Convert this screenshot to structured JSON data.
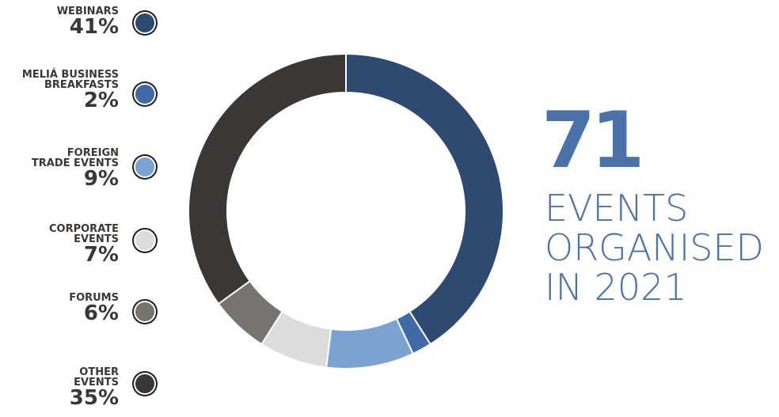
{
  "chart_data": {
    "type": "pie",
    "style": "donut",
    "categories": [
      "WEBINARS",
      "MELIÁ BUSINESS BREAKFASTS",
      "FOREIGN TRADE EVENTS",
      "CORPORATE EVENTS",
      "FORUMS",
      "OTHER EVENTS"
    ],
    "values": [
      41,
      2,
      9,
      7,
      6,
      35
    ],
    "unit": "%",
    "colors": [
      "#2f4a70",
      "#3f6aa6",
      "#7aa3d2",
      "#dcdcdc",
      "#77736f",
      "#3b3734"
    ],
    "legend_position": "left"
  },
  "legend": [
    {
      "label": "WEBINARS",
      "pct": "41%",
      "color": "#2f4a70"
    },
    {
      "label": "MELIÁ BUSINESS\nBREAKFASTS",
      "pct": "2%",
      "color": "#3f6aa6"
    },
    {
      "label": "FOREIGN\nTRADE EVENTS",
      "pct": "9%",
      "color": "#7aa3d2"
    },
    {
      "label": "CORPORATE\nEVENTS",
      "pct": "7%",
      "color": "#dcdcdc"
    },
    {
      "label": "FORUMS",
      "pct": "6%",
      "color": "#77736f"
    },
    {
      "label": "OTHER\nEVENTS",
      "pct": "35%",
      "color": "#3b3734"
    }
  ],
  "summary": {
    "number": "71",
    "caption": "EVENTS\nORGANISED\nIN 2021"
  }
}
